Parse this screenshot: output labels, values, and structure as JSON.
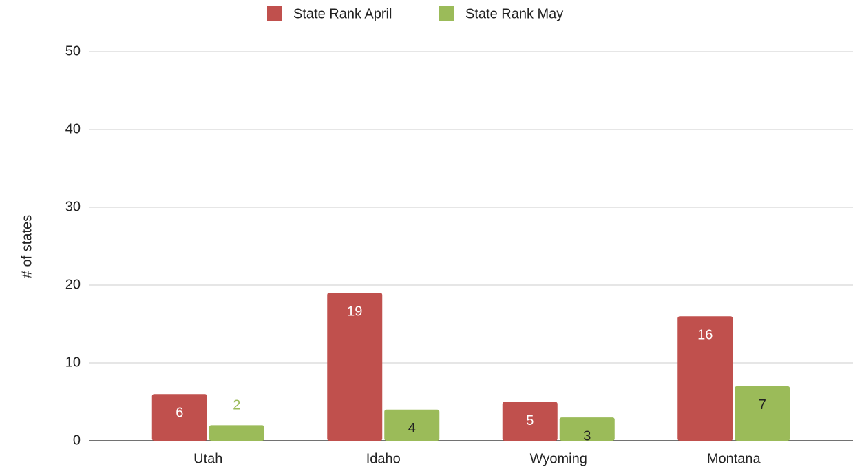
{
  "chart_data": {
    "type": "bar",
    "categories": [
      "Utah",
      "Idaho",
      "Wyoming",
      "Montana"
    ],
    "series": [
      {
        "name": "State Rank April",
        "color": "#c0504d",
        "label_color": "#ffffff",
        "values": [
          6,
          19,
          5,
          16
        ]
      },
      {
        "name": "State Rank May",
        "color": "#9bbb59",
        "label_color": "#222222",
        "values": [
          2,
          4,
          3,
          7
        ]
      }
    ],
    "ylabel": "# of states",
    "ylim": [
      0,
      50
    ],
    "yticks": [
      0,
      10,
      20,
      30,
      40,
      50
    ],
    "grid": true,
    "legend": "top"
  }
}
